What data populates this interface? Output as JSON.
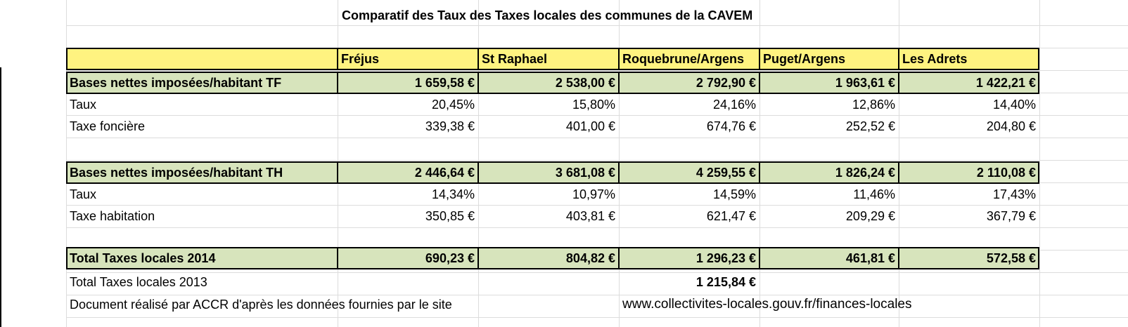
{
  "title": "Comparatif des Taux des Taxes locales des communes de la CAVEM",
  "columns": [
    "Fréjus",
    "St Raphael",
    "Roquebrune/Argens",
    "Puget/Argens",
    "Les Adrets"
  ],
  "sections": [
    {
      "header_row": {
        "label": "Bases nettes imposées/habitant TF",
        "values": [
          "1 659,58 €",
          "2 538,00 €",
          "2 792,90 €",
          "1 963,61 €",
          "1 422,21 €"
        ]
      },
      "rows": [
        {
          "label": "Taux",
          "values": [
            "20,45%",
            "15,80%",
            "24,16%",
            "12,86%",
            "14,40%"
          ]
        },
        {
          "label": "Taxe foncière",
          "values": [
            "339,38 €",
            "401,00 €",
            "674,76 €",
            "252,52 €",
            "204,80 €"
          ]
        }
      ]
    },
    {
      "header_row": {
        "label": "Bases nettes imposées/habitant TH",
        "values": [
          "2 446,64 €",
          "3 681,08 €",
          "4 259,55 €",
          "1 826,24 €",
          "2 110,08 €"
        ]
      },
      "rows": [
        {
          "label": "Taux",
          "values": [
            "14,34%",
            "10,97%",
            "14,59%",
            "11,46%",
            "17,43%"
          ]
        },
        {
          "label": "Taxe habitation",
          "values": [
            "350,85 €",
            "403,81 €",
            "621,47 €",
            "209,29 €",
            "367,79 €"
          ]
        }
      ]
    }
  ],
  "total_2014": {
    "label": "Total Taxes locales 2014",
    "values": [
      "690,23 €",
      "804,82 €",
      "1 296,23 €",
      "461,81 €",
      "572,58 €"
    ]
  },
  "total_2013": {
    "label": "Total Taxes locales 2013",
    "value": "1 215,84 €"
  },
  "footer": {
    "note": "Document réalisé par ACCR d'après les données fournies par  le site",
    "url": "www.collectivites-locales.gouv.fr/finances-locales"
  }
}
